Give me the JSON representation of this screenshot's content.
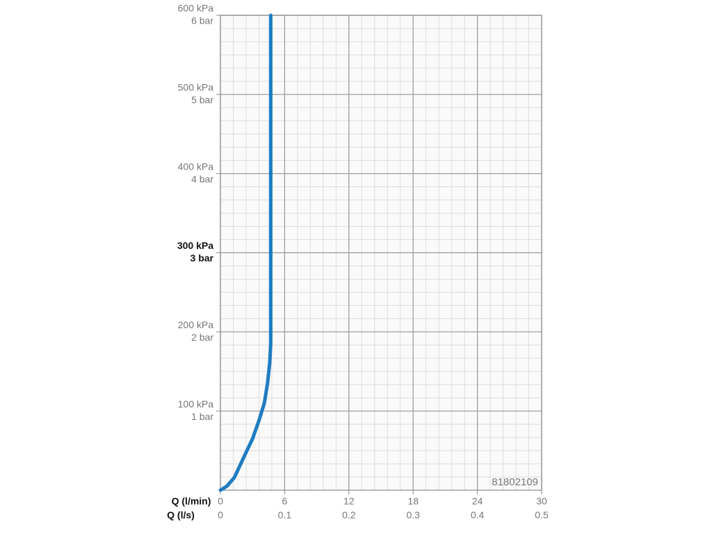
{
  "chart_data": {
    "type": "line",
    "x": [
      0,
      0.6,
      1.3,
      2.3,
      3.0,
      3.6,
      4.1,
      4.4,
      4.6,
      4.7,
      4.7
    ],
    "values": [
      0,
      5,
      16,
      45,
      65,
      88,
      110,
      135,
      160,
      185,
      600
    ],
    "color": "#1f7cc1",
    "xlim": [
      0,
      30
    ],
    "xticks": [
      0,
      6,
      12,
      18,
      24,
      30
    ],
    "x2lim": [
      0,
      0.5
    ],
    "x2ticks": [
      0,
      0.1,
      0.2,
      0.3,
      0.4,
      0.5
    ],
    "ylim": [
      0,
      600
    ],
    "yticks": [
      {
        "value": 100,
        "label": "100 kPa"
      },
      {
        "value": 200,
        "label": "200 kPa"
      },
      {
        "value": 300,
        "label": "300 kPa"
      },
      {
        "value": 400,
        "label": "400 kPa"
      },
      {
        "value": 500,
        "label": "500 kPa"
      },
      {
        "value": 600,
        "label": "600 kPa"
      }
    ],
    "y2lim": [
      0,
      6
    ],
    "y2ticks": [
      {
        "value": 1,
        "label": "1 bar"
      },
      {
        "value": 2,
        "label": "2 bar"
      },
      {
        "value": 3,
        "label": "3 bar"
      },
      {
        "value": 4,
        "label": "4 bar"
      },
      {
        "value": 5,
        "label": "5 bar"
      },
      {
        "value": 6,
        "label": "6 bar"
      }
    ],
    "bold_yticks": [
      300
    ],
    "xlabel": "Q (l/min)",
    "x2label": "Q (l/s)",
    "annotation": "81802109",
    "grid": true,
    "minor_grid_divisions": {
      "x": 5,
      "y": 6
    }
  }
}
